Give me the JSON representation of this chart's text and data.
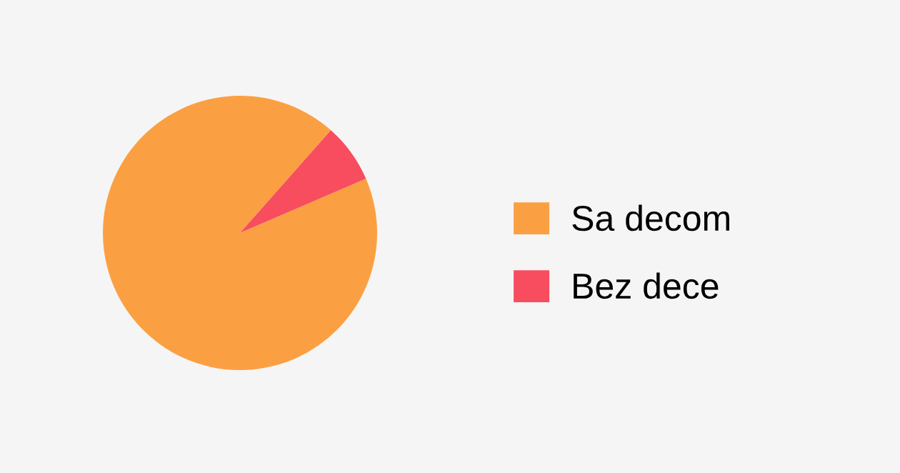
{
  "chart_data": {
    "type": "pie",
    "categories": [
      "Sa decom",
      "Bez dece"
    ],
    "values": [
      93,
      7
    ],
    "colors": [
      "#fba042",
      "#f74d5f"
    ],
    "legend": "right"
  }
}
